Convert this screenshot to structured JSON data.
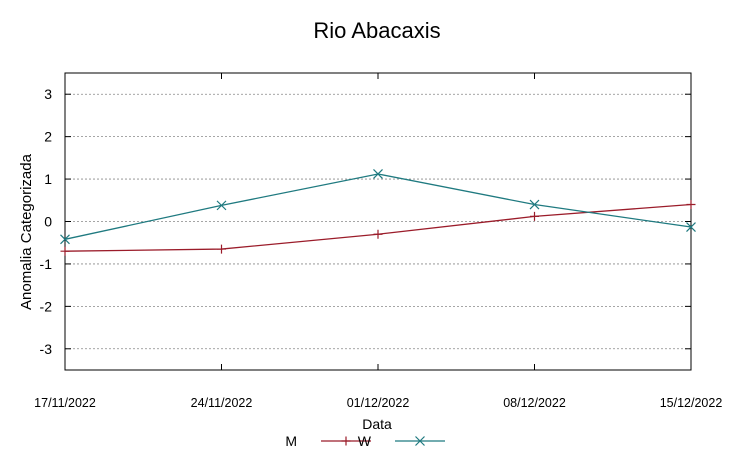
{
  "chart_data": {
    "type": "line",
    "title": "Rio Abacaxis",
    "xlabel": "Data",
    "ylabel": "Anomalia Categorizada",
    "categories": [
      "17/11/2022",
      "24/11/2022",
      "01/12/2022",
      "08/12/2022",
      "15/12/2022"
    ],
    "yticks": [
      "3",
      "2",
      "1",
      "0",
      "-1",
      "-2",
      "-3"
    ],
    "ylim": [
      -3.5,
      3.5
    ],
    "grid": true,
    "legend_position": "bottom",
    "series": [
      {
        "name": "M",
        "color": "#9b1c2a",
        "marker": "plus",
        "values": [
          -0.7,
          -0.65,
          -0.3,
          0.12,
          0.4
        ]
      },
      {
        "name": "W",
        "color": "#1f7a80",
        "marker": "cross",
        "values": [
          -0.42,
          0.38,
          1.12,
          0.4,
          -0.13
        ]
      }
    ]
  }
}
